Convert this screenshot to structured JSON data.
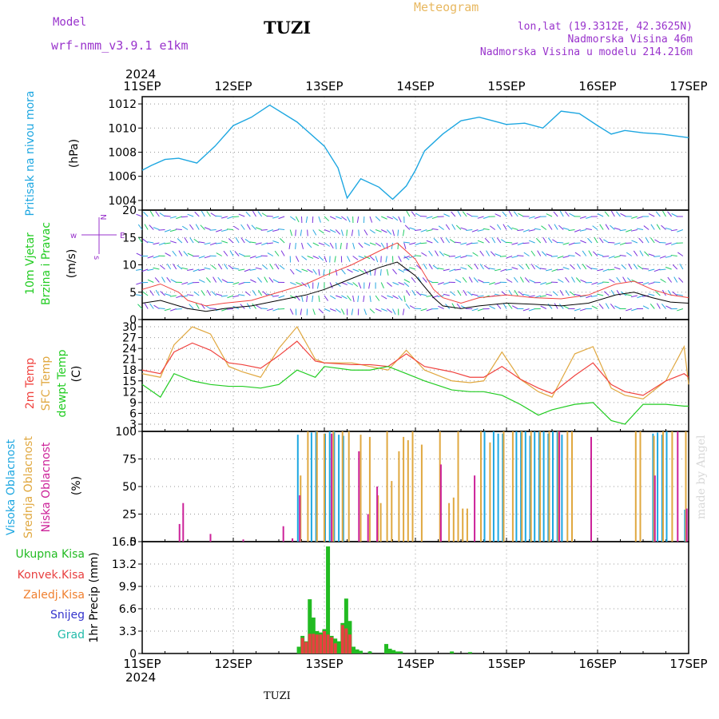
{
  "header": {
    "model_label": "Model",
    "model_value": "wrf-nmm_v3.9.1  e1km",
    "title": "TUZI",
    "meteogram": "Meteogram",
    "lonlat": "lon,lat (19.3312E, 42.3625N)",
    "elevation": "Nadmorska Visina 46m",
    "elevation_model": "Nadmorska Visina u modelu 214.216m"
  },
  "x_axis": {
    "year": "2024",
    "ticks": [
      "11SEP",
      "12SEP",
      "13SEP",
      "14SEP",
      "15SEP",
      "16SEP",
      "17SEP"
    ]
  },
  "footer": "TUZI",
  "credit": "made by Angel",
  "colors": {
    "pressure": "#1ea7e1",
    "t2m": "#f0433f",
    "sfc": "#e0a840",
    "dew": "#22cc22",
    "high": "#1ea7e1",
    "mid": "#e0a840",
    "low": "#cc2299",
    "total": "#22bb22",
    "conv": "#e84040",
    "frozen": "#f08030",
    "snow": "#3333cc",
    "grad": "#22bbaa"
  },
  "chart_data": [
    {
      "type": "line",
      "panel": "pressure",
      "ylabel": [
        "Pritisak na nivou mora",
        "(hPa)"
      ],
      "ylim": [
        1003.2,
        1012.6
      ],
      "yticks": [
        1004,
        1006,
        1008,
        1010,
        1012
      ],
      "series": [
        {
          "x": [
            0,
            0.1,
            0.25,
            0.4,
            0.6,
            0.8,
            1.0,
            1.2,
            1.4,
            1.7,
            2.0,
            2.15,
            2.25,
            2.4,
            2.6,
            2.75,
            2.9,
            3.0,
            3.1,
            3.3,
            3.5,
            3.7,
            3.9,
            4.0,
            4.2,
            4.4,
            4.6,
            4.8,
            5.0,
            5.15,
            5.3,
            5.5,
            5.7,
            5.8,
            6.0
          ],
          "y": [
            1006.5,
            1006.9,
            1007.4,
            1007.5,
            1007.1,
            1008.5,
            1010.2,
            1010.9,
            1011.9,
            1010.5,
            1008.5,
            1006.7,
            1004.2,
            1005.8,
            1005.1,
            1004.1,
            1005.2,
            1006.5,
            1008.1,
            1009.5,
            1010.6,
            1010.9,
            1010.5,
            1010.3,
            1010.4,
            1010.0,
            1011.4,
            1011.2,
            1010.2,
            1009.5,
            1009.8,
            1009.6,
            1009.5,
            1009.4,
            1009.2
          ]
        }
      ]
    },
    {
      "type": "line",
      "panel": "wind",
      "ylabel": [
        "10m Vjetar",
        "Brzina i Pravac",
        "(m/s)"
      ],
      "ylim": [
        0,
        20
      ],
      "yticks": [
        0,
        5,
        10,
        15,
        20
      ],
      "legend": [
        "w",
        "s",
        "E",
        "N"
      ],
      "series": [
        {
          "name": "speed",
          "x": [
            0,
            0.2,
            0.4,
            0.5,
            0.7,
            0.9,
            1.2,
            1.5,
            1.8,
            2.0,
            2.3,
            2.6,
            2.8,
            3.0,
            3.2,
            3.3,
            3.5,
            3.7,
            4.0,
            4.3,
            4.6,
            4.9,
            5.2,
            5.4,
            5.6,
            5.8,
            6.0
          ],
          "y": [
            3,
            3.5,
            2.5,
            2.0,
            1.5,
            2.0,
            2.5,
            3.5,
            4.5,
            5.5,
            7.5,
            9.5,
            10.5,
            8.0,
            4.0,
            2.5,
            2.0,
            2.5,
            3.0,
            2.8,
            2.5,
            3.0,
            4.5,
            5.0,
            4.0,
            3.2,
            3.0
          ]
        },
        {
          "name": "gust",
          "x": [
            0,
            0.2,
            0.4,
            0.5,
            0.7,
            0.9,
            1.2,
            1.5,
            1.8,
            2.0,
            2.3,
            2.6,
            2.8,
            3.0,
            3.2,
            3.3,
            3.5,
            3.7,
            4.0,
            4.3,
            4.6,
            4.9,
            5.2,
            5.4,
            5.6,
            5.8,
            6.0
          ],
          "y": [
            5.5,
            6.5,
            5.0,
            3.5,
            2.5,
            3.0,
            3.5,
            5.0,
            6.5,
            8.0,
            10.0,
            12.5,
            14.0,
            11.0,
            5.5,
            4.0,
            3.0,
            4.0,
            4.5,
            4.0,
            3.8,
            4.5,
            6.5,
            7.0,
            5.5,
            4.5,
            4.0
          ]
        }
      ]
    },
    {
      "type": "line",
      "panel": "temperature",
      "ylabel": [
        "2m Temp",
        "SFC Temp",
        "dewpt Temp",
        "(C)"
      ],
      "ylim": [
        1,
        32
      ],
      "yticks": [
        3,
        6,
        9,
        12,
        15,
        18,
        21,
        24,
        27,
        30
      ],
      "series": [
        {
          "name": "2m Temp",
          "x": [
            0,
            0.2,
            0.35,
            0.55,
            0.75,
            0.95,
            1.1,
            1.3,
            1.5,
            1.7,
            1.9,
            2.0,
            2.3,
            2.5,
            2.7,
            2.9,
            3.1,
            3.4,
            3.6,
            3.75,
            3.95,
            4.15,
            4.35,
            4.5,
            4.75,
            4.95,
            5.15,
            5.3,
            5.5,
            5.75,
            5.95,
            6.0
          ],
          "y": [
            18,
            17,
            23,
            25.5,
            23.5,
            20,
            19.5,
            18.5,
            22,
            26,
            20.5,
            20,
            19.5,
            19.5,
            19,
            22.5,
            19,
            17.5,
            16,
            16,
            19,
            15.5,
            13,
            11.5,
            16.5,
            20,
            14,
            12,
            11,
            15,
            17,
            16
          ]
        },
        {
          "name": "SFC Temp",
          "x": [
            0,
            0.2,
            0.35,
            0.55,
            0.75,
            0.95,
            1.1,
            1.3,
            1.5,
            1.7,
            1.9,
            2.0,
            2.3,
            2.5,
            2.7,
            2.9,
            3.1,
            3.4,
            3.6,
            3.75,
            3.95,
            4.15,
            4.35,
            4.5,
            4.75,
            4.95,
            5.15,
            5.3,
            5.5,
            5.75,
            5.95,
            6.0
          ],
          "y": [
            17,
            16,
            25,
            30,
            28,
            19,
            17.5,
            16,
            24,
            30,
            21,
            20,
            20,
            19,
            18,
            23.5,
            18,
            15,
            14.5,
            15,
            23,
            15.5,
            12,
            10.5,
            22.5,
            24.5,
            13,
            11,
            10,
            15,
            24.5,
            14
          ]
        },
        {
          "name": "dewpt Temp",
          "x": [
            0,
            0.2,
            0.35,
            0.55,
            0.75,
            0.95,
            1.1,
            1.3,
            1.5,
            1.7,
            1.9,
            2.0,
            2.3,
            2.5,
            2.7,
            2.9,
            3.1,
            3.4,
            3.6,
            3.75,
            3.95,
            4.15,
            4.35,
            4.5,
            4.75,
            4.95,
            5.15,
            5.3,
            5.5,
            5.75,
            5.95,
            6.0
          ],
          "y": [
            14,
            10.5,
            17,
            15,
            14,
            13.5,
            13.5,
            13,
            14,
            18,
            16,
            19,
            18,
            18,
            19,
            17,
            15,
            12.5,
            12,
            12,
            11,
            8.5,
            5.5,
            7,
            8.5,
            9,
            4,
            3,
            8.5,
            8.5,
            8,
            8
          ]
        }
      ]
    },
    {
      "type": "bar",
      "panel": "cloud",
      "ylabel": [
        "Visoka Oblacnost",
        "Srednja Oblacnost",
        "Niska Oblacnost",
        "(%)"
      ],
      "ylim": [
        0,
        100
      ],
      "yticks": [
        0,
        25,
        50,
        75,
        100
      ],
      "series": [
        {
          "name": "Visoka Oblacnost",
          "x": [
            1.7,
            1.85,
            1.9,
            2.0,
            2.05,
            2.1,
            2.15,
            2.2,
            3.75,
            3.85,
            3.9,
            3.95,
            4.1,
            4.15,
            4.2,
            4.25,
            4.3,
            4.35,
            4.4,
            4.45,
            4.5,
            4.55,
            4.6,
            5.6,
            5.65,
            5.7,
            5.75,
            5.95
          ],
          "y": [
            97,
            99,
            100,
            98,
            100,
            100,
            97,
            96,
            100,
            100,
            98,
            98,
            100,
            100,
            100,
            96,
            100,
            100,
            100,
            98,
            100,
            100,
            97,
            98,
            99,
            97,
            100,
            29
          ]
        },
        {
          "name": "Srednja Oblacnost",
          "x": [
            1.72,
            1.8,
            1.9,
            1.98,
            2.08,
            2.18,
            2.25,
            2.38,
            2.48,
            2.57,
            2.6,
            2.67,
            2.72,
            2.8,
            2.85,
            2.9,
            2.95,
            3.05,
            3.25,
            3.35,
            3.4,
            3.45,
            3.5,
            3.55,
            3.7,
            3.8,
            3.95,
            4.05,
            4.15,
            4.25,
            4.35,
            4.45,
            4.55,
            4.65,
            4.7,
            5.4,
            5.45,
            5.6,
            5.7,
            5.8,
            5.95
          ],
          "y": [
            60,
            100,
            100,
            98,
            100,
            100,
            100,
            97,
            95,
            42,
            35,
            100,
            55,
            82,
            95,
            92,
            100,
            88,
            100,
            35,
            40,
            100,
            30,
            30,
            100,
            90,
            100,
            100,
            100,
            100,
            100,
            100,
            100,
            100,
            100,
            100,
            100,
            96,
            100,
            100,
            100
          ]
        },
        {
          "name": "Niska Oblacnost",
          "x": [
            0.38,
            0.42,
            0.72,
            1.08,
            1.52,
            1.62,
            1.7,
            2.05,
            2.35,
            2.45,
            2.55,
            3.25,
            3.62,
            4.55,
            4.9,
            5.6,
            5.85,
            5.95
          ],
          "y": [
            16,
            35,
            7,
            2,
            14,
            3,
            42,
            98,
            82,
            25,
            50,
            70,
            60,
            100,
            95,
            60,
            100,
            30
          ]
        }
      ]
    },
    {
      "type": "bar",
      "panel": "precip",
      "ylabel": [
        "Ukupna  Kisa",
        "Konvek.Kisa",
        "Zaledj.Kisa",
        "Snijeg",
        "Grad",
        "1hr Precip (mm)"
      ],
      "ylim": [
        0,
        16.5
      ],
      "yticks": [
        0,
        3.3,
        6.6,
        9.9,
        13.2,
        16.5
      ],
      "series": [
        {
          "name": "Ukupna  Kisa",
          "x": [
            1.72,
            1.76,
            1.8,
            1.84,
            1.88,
            1.92,
            1.96,
            2.0,
            2.04,
            2.08,
            2.12,
            2.16,
            2.2,
            2.24,
            2.28,
            2.32,
            2.36,
            2.4,
            2.5,
            2.68,
            2.72,
            2.76,
            2.8,
            2.84,
            3.4,
            3.6
          ],
          "y": [
            1.0,
            2.6,
            1.8,
            8.0,
            5.3,
            3.3,
            3.1,
            3.6,
            15.8,
            2.6,
            2.2,
            1.8,
            4.5,
            8.1,
            4.8,
            1.0,
            0.6,
            0.4,
            0.3,
            1.4,
            0.7,
            0.5,
            0.3,
            0.3,
            0.3,
            0.2
          ]
        },
        {
          "name": "Konvek.Kisa",
          "x": [
            1.76,
            1.8,
            1.84,
            1.88,
            1.92,
            1.96,
            2.0,
            2.04,
            2.08,
            2.12,
            2.2,
            2.24,
            2.28
          ],
          "y": [
            2.3,
            1.7,
            2.9,
            2.9,
            2.8,
            2.8,
            3.3,
            2.8,
            2.4,
            1.5,
            4.2,
            3.7,
            2.8
          ]
        }
      ]
    }
  ]
}
